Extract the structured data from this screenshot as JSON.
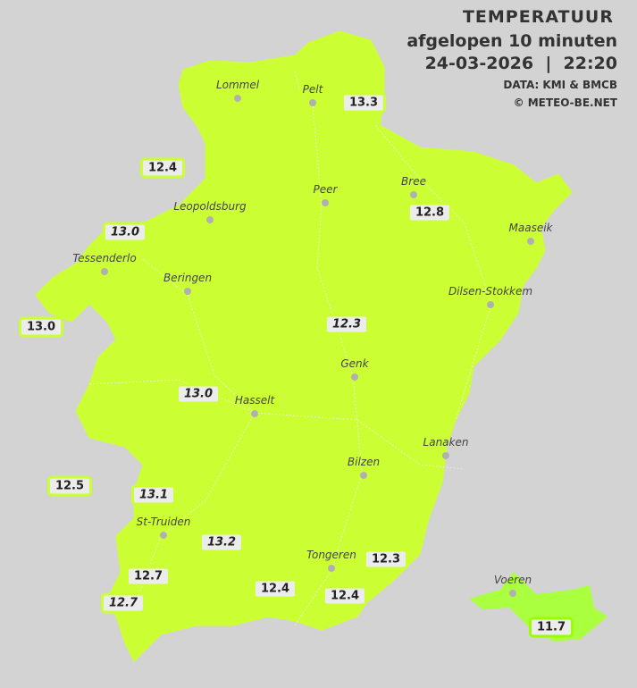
{
  "header": {
    "title": "TEMPERATUUR",
    "subtitle": "afgelopen 10 minuten",
    "datetime": "24-03-2026  |  22:20",
    "source": "DATA: KMI & BMCB",
    "copyright": "© METEO-BE.NET"
  },
  "colors": {
    "background": "#d3d3d3",
    "region_main": "#ccff33",
    "region_voeren": "#aaff3f",
    "label_bg": "#ececec"
  },
  "cities": [
    {
      "name": "Lommel"
    },
    {
      "name": "Pelt"
    },
    {
      "name": "Peer"
    },
    {
      "name": "Bree"
    },
    {
      "name": "Leopoldsburg"
    },
    {
      "name": "Maaseik"
    },
    {
      "name": "Tessenderlo"
    },
    {
      "name": "Beringen"
    },
    {
      "name": "Dilsen-Stokkem"
    },
    {
      "name": "Genk"
    },
    {
      "name": "Hasselt"
    },
    {
      "name": "Lanaken"
    },
    {
      "name": "Bilzen"
    },
    {
      "name": "St-Truiden"
    },
    {
      "name": "Tongeren"
    },
    {
      "name": "Voeren"
    }
  ],
  "readings": [
    {
      "value": "13.3",
      "italic": false
    },
    {
      "value": "12.4",
      "italic": false
    },
    {
      "value": "12.8",
      "italic": false
    },
    {
      "value": "13.0",
      "italic": true
    },
    {
      "value": "13.0",
      "italic": false
    },
    {
      "value": "12.3",
      "italic": true
    },
    {
      "value": "13.0",
      "italic": true
    },
    {
      "value": "12.5",
      "italic": false
    },
    {
      "value": "13.1",
      "italic": true
    },
    {
      "value": "13.2",
      "italic": true
    },
    {
      "value": "12.7",
      "italic": false
    },
    {
      "value": "12.7",
      "italic": true
    },
    {
      "value": "12.4",
      "italic": false
    },
    {
      "value": "12.3",
      "italic": false
    },
    {
      "value": "12.4",
      "italic": false
    },
    {
      "value": "11.7",
      "italic": false
    }
  ]
}
